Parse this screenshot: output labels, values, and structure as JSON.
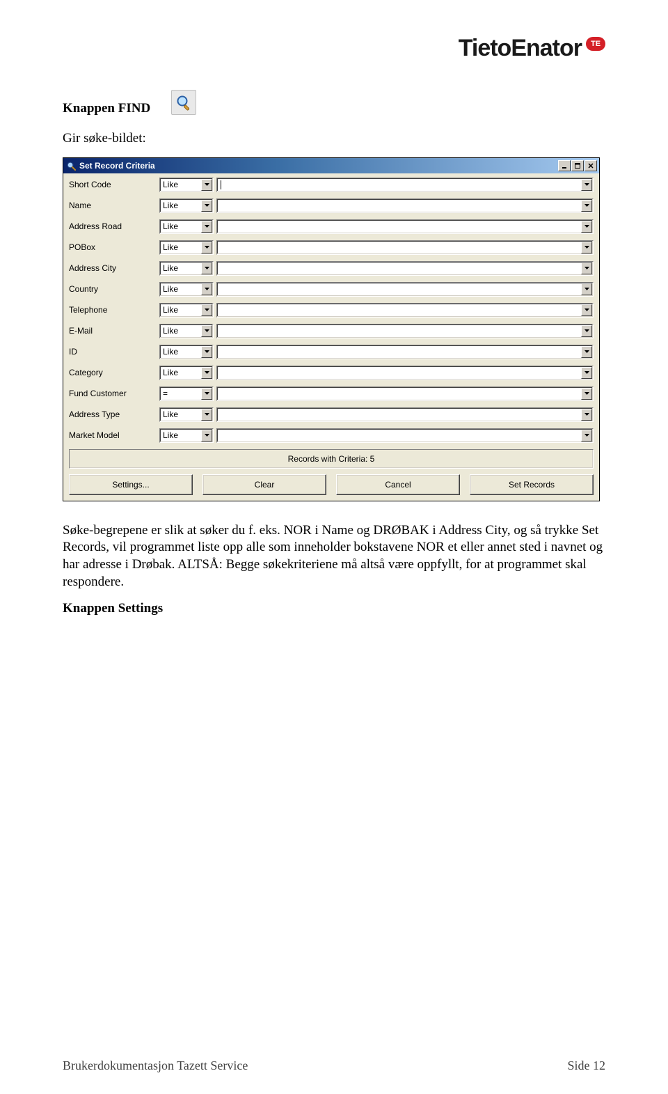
{
  "logo": {
    "text": "TietoEnator",
    "badge": "TE",
    "brand_color": "#d42027"
  },
  "section": {
    "heading": "Knappen FIND",
    "subheading": "Gir søke-bildet:"
  },
  "dialog": {
    "title": "Set Record Criteria",
    "titlebar_gradient_from": "#0a246a",
    "titlebar_gradient_to": "#a6caf0",
    "body_bg": "#ece9d8",
    "field_bg": "#ffffff",
    "fields": [
      {
        "label": "Short Code",
        "operator": "Like",
        "value": "",
        "focused": true
      },
      {
        "label": "Name",
        "operator": "Like",
        "value": ""
      },
      {
        "label": "Address Road",
        "operator": "Like",
        "value": ""
      },
      {
        "label": "POBox",
        "operator": "Like",
        "value": ""
      },
      {
        "label": "Address City",
        "operator": "Like",
        "value": ""
      },
      {
        "label": "Country",
        "operator": "Like",
        "value": ""
      },
      {
        "label": "Telephone",
        "operator": "Like",
        "value": ""
      },
      {
        "label": "E-Mail",
        "operator": "Like",
        "value": ""
      },
      {
        "label": "ID",
        "operator": "Like",
        "value": ""
      },
      {
        "label": "Category",
        "operator": "Like",
        "value": ""
      },
      {
        "label": "Fund Customer",
        "operator": "=",
        "value": ""
      },
      {
        "label": "Address Type",
        "operator": "Like",
        "value": ""
      },
      {
        "label": "Market Model",
        "operator": "Like",
        "value": ""
      }
    ],
    "status_text": "Records with Criteria: 5",
    "buttons": {
      "settings": "Settings...",
      "clear": "Clear",
      "cancel": "Cancel",
      "set_records": "Set Records"
    }
  },
  "explanation_paragraph": "Søke-begrepene er slik at søker du f. eks. NOR i Name og DRØBAK i Address City, og så trykke Set Records, vil programmet liste opp alle som inneholder bokstavene NOR et eller annet sted i navnet og har adresse i Drøbak. ALTSÅ: Begge søkekriteriene må altså være oppfyllt, for at programmet skal respondere.",
  "settings_heading": "Knappen Settings",
  "footer": {
    "left": "Brukerdokumentasjon Tazett Service",
    "right": "Side 12"
  }
}
